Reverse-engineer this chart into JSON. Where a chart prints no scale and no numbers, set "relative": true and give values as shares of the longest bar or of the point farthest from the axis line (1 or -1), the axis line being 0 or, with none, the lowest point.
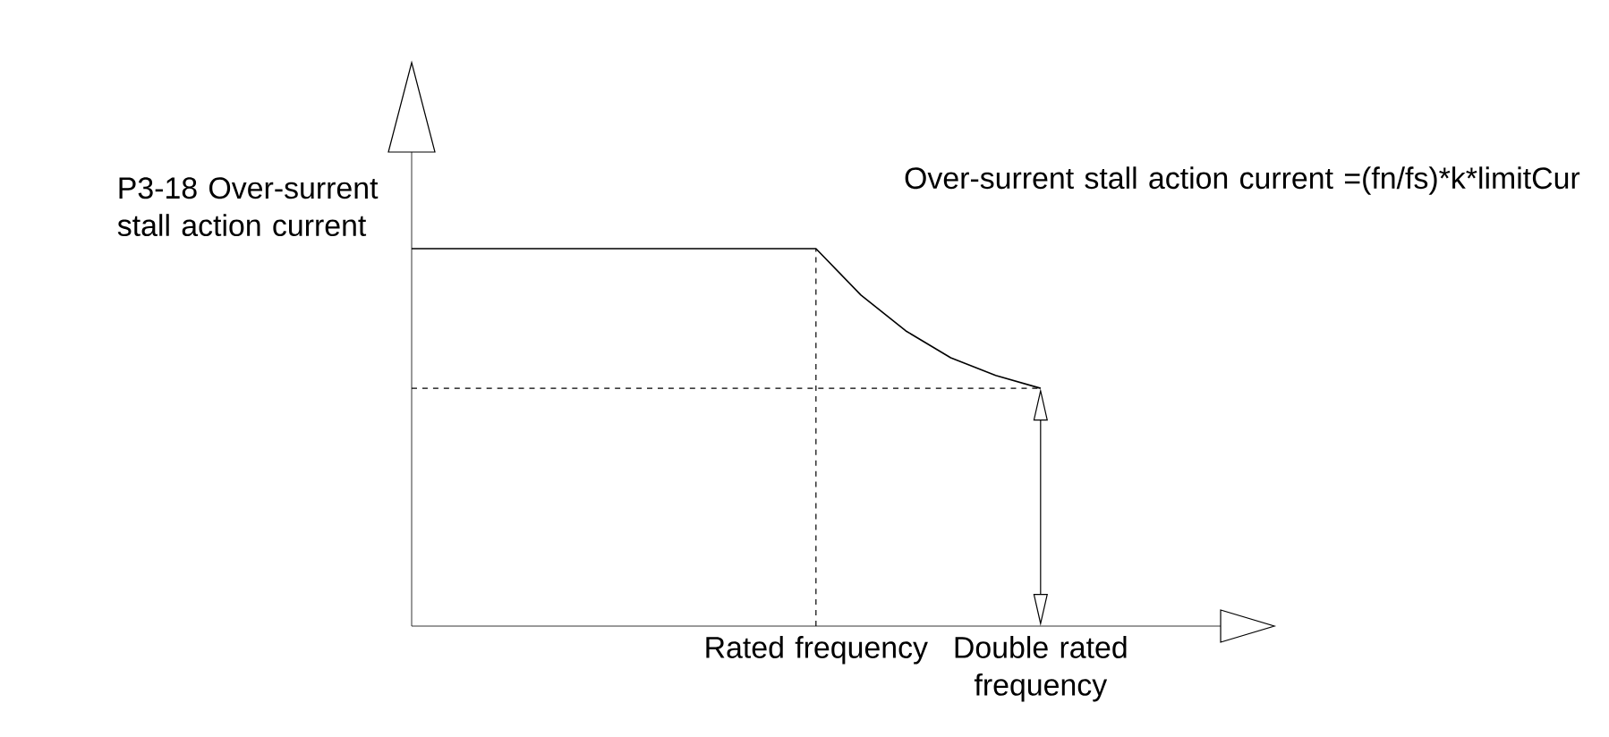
{
  "chart_data": {
    "type": "line",
    "relative": true,
    "ylabel": "P3-18 Over-surrent stall action current",
    "categories": [
      null,
      null,
      null,
      null,
      null,
      null,
      null,
      null,
      null,
      "Rated frequency",
      null,
      null,
      null,
      null,
      "Double rated frequency"
    ],
    "series": [
      {
        "color": "#000000",
        "values": [
          1,
          1,
          1,
          1,
          1,
          1,
          1,
          1,
          1,
          1,
          0.877,
          0.782,
          0.711,
          0.664,
          0.63
        ]
      }
    ],
    "ref_lines": [
      {
        "axis": "x",
        "value": "Rated frequency",
        "line_style": "dashed"
      },
      {
        "axis": "y",
        "value": 0.63,
        "line_style": "dashed"
      }
    ],
    "annotations": [
      "Over-surrent stall action current =(fn/fs)*k*limitCur"
    ],
    "marker": "none",
    "line_style": "solid",
    "grid": false,
    "legend": false
  }
}
